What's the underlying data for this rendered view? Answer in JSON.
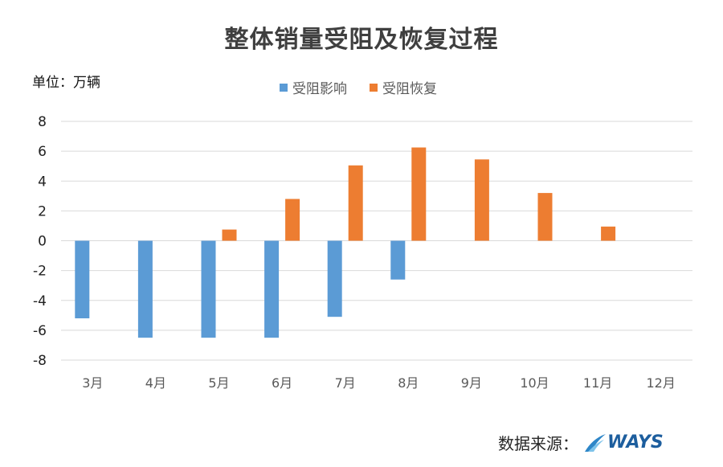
{
  "title": "整体销量受阻及恢复过程",
  "unit_label": "单位：万辆",
  "source_label": "数据来源：",
  "logo_text": "WAYS",
  "colors": {
    "impact": "#5b9bd5",
    "recovery": "#ed7d31",
    "grid": "#d9d9d9",
    "axis_text": "#595959"
  },
  "chart_data": {
    "type": "bar",
    "title": "整体销量受阻及恢复过程",
    "xlabel": "",
    "ylabel": "",
    "unit": "单位：万辆",
    "categories": [
      "3月",
      "4月",
      "5月",
      "6月",
      "7月",
      "8月",
      "9月",
      "10月",
      "11月",
      "12月"
    ],
    "ylim": [
      -8,
      8
    ],
    "yticks": [
      8,
      6,
      4,
      2,
      0,
      -2,
      -4,
      -6,
      -8
    ],
    "grid": true,
    "legend_position": "top-center",
    "series": [
      {
        "name": "受阻影响",
        "color": "#5b9bd5",
        "values": [
          -5.2,
          -6.5,
          -6.5,
          -6.5,
          -5.1,
          -2.6,
          null,
          null,
          null,
          null
        ]
      },
      {
        "name": "受阻恢复",
        "color": "#ed7d31",
        "values": [
          null,
          null,
          0.75,
          2.8,
          5.05,
          6.25,
          5.45,
          3.2,
          0.95,
          null
        ]
      }
    ]
  }
}
